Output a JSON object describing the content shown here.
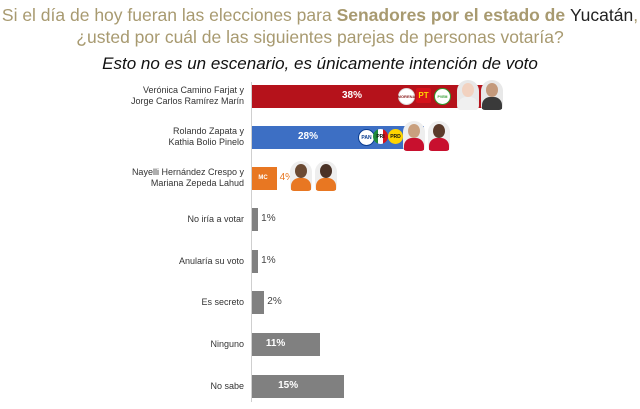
{
  "header": {
    "title_part1": "Si el día de hoy fueran las elecciones para ",
    "title_highlight": "Senadores por el estado de ",
    "title_state": "Yucatán",
    "title_part2": ",",
    "title_line2": "¿usted por cuál de las siguientes parejas de personas votaría?",
    "subtitle": "Esto no es un escenario, es únicamente intención de voto"
  },
  "colors": {
    "morena_red": "#b5121b",
    "pan_blue": "#3d6fc4",
    "mc_orange": "#e87722",
    "gray": "#808080"
  },
  "logos": {
    "morena": "MORENA",
    "pt": "PT",
    "pvem": "PVEM",
    "pan": "PAN",
    "pri": "PRI",
    "prd": "PRD",
    "mc": "MC"
  },
  "chart_data": {
    "type": "bar",
    "orientation": "horizontal",
    "categories": [
      [
        "Verónica Camino Farjat y",
        "Jorge Carlos Ramírez Marín"
      ],
      [
        "Rolando Zapata y",
        "Kathia Bolio Pinelo"
      ],
      [
        "Nayelli Hernández Crespo y",
        "Mariana Zepeda Lahud"
      ],
      [
        "No iría a votar"
      ],
      [
        "Anularía su voto"
      ],
      [
        "Es secreto"
      ],
      [
        "Ninguno"
      ],
      [
        "No sabe"
      ]
    ],
    "values": [
      38,
      28,
      4,
      1,
      1,
      2,
      11,
      15
    ],
    "value_labels": [
      "38%",
      "28%",
      "4%",
      "1%",
      "1%",
      "2%",
      "11%",
      "15%"
    ],
    "bar_colors": [
      "#b5121b",
      "#3d6fc4",
      "#e87722",
      "#808080",
      "#808080",
      "#808080",
      "#808080",
      "#808080"
    ],
    "xlim": [
      0,
      40
    ]
  }
}
